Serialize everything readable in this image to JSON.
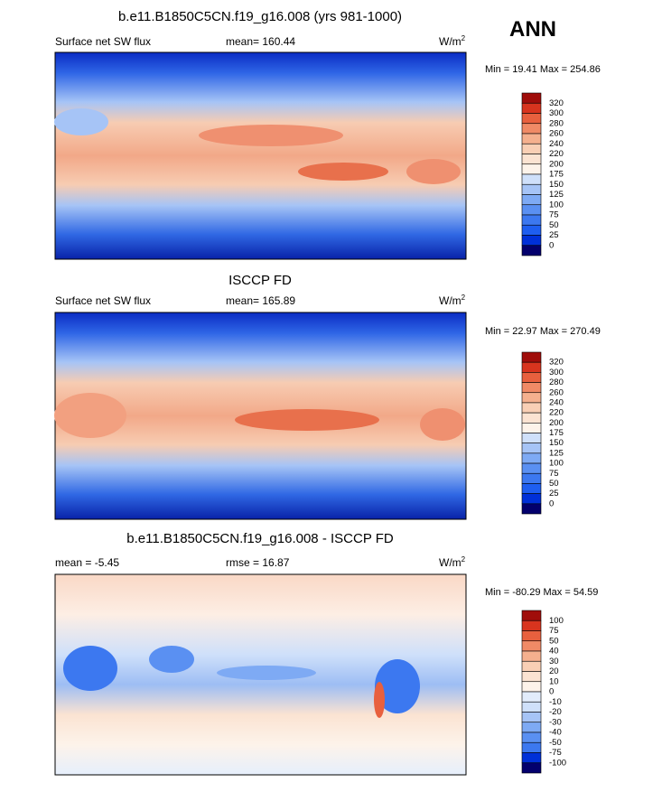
{
  "season": "ANN",
  "panels": [
    {
      "title": "b.e11.B1850C5CN.f19_g16.008 (yrs 981-1000)",
      "left_label": "Surface net SW flux",
      "center_label": "mean= 160.44",
      "units": {
        "base": "W/m",
        "exponent": "2"
      },
      "minmax": "Min =  19.41 Max = 254.86",
      "colorbar": {
        "labels": [
          320,
          300,
          280,
          260,
          240,
          220,
          200,
          175,
          150,
          125,
          100,
          75,
          50,
          25,
          0
        ],
        "colors": [
          "#a00d0a",
          "#d8341e",
          "#e8603e",
          "#f08a66",
          "#f5b08e",
          "#f9cfb5",
          "#fbe3d2",
          "#fdf3ea",
          "#cfe0fa",
          "#a6c4f6",
          "#7eaaf4",
          "#5a90f2",
          "#3c78f0",
          "#1e5ef0",
          "#0030d8",
          "#03006d"
        ]
      }
    },
    {
      "title": "ISCCP FD",
      "left_label": "Surface net SW flux",
      "center_label": "mean= 165.89",
      "units": {
        "base": "W/m",
        "exponent": "2"
      },
      "minmax": "Min =  22.97 Max = 270.49",
      "colorbar": {
        "labels": [
          320,
          300,
          280,
          260,
          240,
          220,
          200,
          175,
          150,
          125,
          100,
          75,
          50,
          25,
          0
        ],
        "colors": [
          "#a00d0a",
          "#d8341e",
          "#e8603e",
          "#f08a66",
          "#f5b08e",
          "#f9cfb5",
          "#fbe3d2",
          "#fdf3ea",
          "#cfe0fa",
          "#a6c4f6",
          "#7eaaf4",
          "#5a90f2",
          "#3c78f0",
          "#1e5ef0",
          "#0030d8",
          "#03006d"
        ]
      }
    },
    {
      "title": "b.e11.B1850C5CN.f19_g16.008 - ISCCP FD",
      "left_label": "mean =  -5.45",
      "center_label": "rmse =  16.87",
      "units": {
        "base": "W/m",
        "exponent": "2"
      },
      "minmax": "Min = -80.29 Max =  54.59",
      "colorbar": {
        "labels": [
          100,
          75,
          50,
          40,
          30,
          20,
          10,
          0,
          -10,
          -20,
          -30,
          -40,
          -50,
          -75,
          -100
        ],
        "colors": [
          "#a00d0a",
          "#d8341e",
          "#e8603e",
          "#f08a66",
          "#f5b08e",
          "#f9cfb5",
          "#fbe3d2",
          "#fdf3ea",
          "#e2ecfb",
          "#cfe0fa",
          "#a6c4f6",
          "#7eaaf4",
          "#5a90f2",
          "#3c78f0",
          "#0030d8",
          "#03006d"
        ]
      }
    }
  ]
}
